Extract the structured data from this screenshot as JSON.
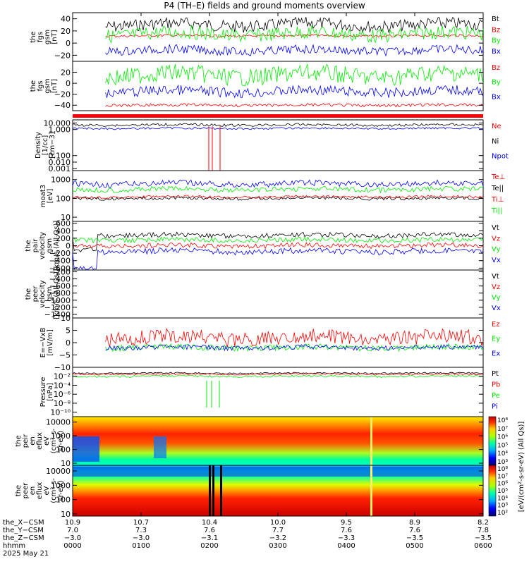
{
  "title": "P4 (TH–E) fields and ground moments overview",
  "colors": {
    "black": "#000000",
    "red": "#ff0000",
    "green": "#00ee00",
    "blue": "#0000ff"
  },
  "panels": [
    {
      "ylabel": [
        "the",
        "fgs",
        "gsm",
        "[nT]"
      ],
      "type": "linear",
      "ylim": [
        -30,
        50
      ],
      "ticks": [
        {
          "v": 40,
          "t": "40"
        },
        {
          "v": 20,
          "t": "20"
        },
        {
          "v": 0,
          "t": "0"
        },
        {
          "v": -20,
          "t": "−20"
        }
      ],
      "legend": [
        {
          "t": "Bt",
          "c": "black"
        },
        {
          "t": "Bz",
          "c": "red"
        },
        {
          "t": "By",
          "c": "green"
        },
        {
          "t": "Bx",
          "c": "blue"
        }
      ]
    },
    {
      "ylabel": [
        "the",
        "fgs",
        "gsm",
        "[nT]"
      ],
      "type": "linear",
      "ylim": [
        -50,
        40
      ],
      "ticks": [
        {
          "v": 20,
          "t": "20"
        },
        {
          "v": 0,
          "t": "0"
        },
        {
          "v": -20,
          "t": "−20"
        },
        {
          "v": -40,
          "t": "−40"
        }
      ],
      "legend": [
        {
          "t": "Bz",
          "c": "red"
        },
        {
          "t": "By",
          "c": "green"
        },
        {
          "t": "Bx",
          "c": "blue"
        }
      ]
    },
    {
      "ylabel": [
        "Density",
        "[1/cc]",
        "[cm−3]"
      ],
      "type": "log",
      "ylim": [
        0.0005,
        30000
      ],
      "ticks": [
        {
          "v": 10000,
          "t": "10.000"
        },
        {
          "v": 1000,
          "t": "1.000"
        },
        {
          "v": 0.1,
          "t": "0.100"
        },
        {
          "v": 0.01,
          "t": "0.010"
        },
        {
          "v": 0.001,
          "t": "0.001"
        }
      ],
      "legend": [
        {
          "t": "Ne",
          "c": "red"
        },
        {
          "t": "Ni",
          "c": "black"
        },
        {
          "t": "Npot",
          "c": "blue"
        }
      ]
    },
    {
      "ylabel": [
        "moat3",
        "[eV]"
      ],
      "type": "log",
      "ylim": [
        6,
        3000
      ],
      "ticks": [
        {
          "v": 1000,
          "t": "1000"
        },
        {
          "v": 100,
          "t": "100"
        },
        {
          "v": 10,
          "t": "10"
        }
      ],
      "legend": [
        {
          "t": "Te⊥",
          "c": "red"
        },
        {
          "t": "Te||",
          "c": "black"
        },
        {
          "t": "Ti⊥",
          "c": "red"
        },
        {
          "t": "Ti||",
          "c": "green"
        }
      ]
    },
    {
      "ylabel": [
        "the",
        "pair",
        "velocity",
        "gsm",
        "[km/s (All Qs)]"
      ],
      "type": "linear",
      "ylim": [
        -650,
        650
      ],
      "ticks": [
        {
          "v": 600,
          "t": "600"
        },
        {
          "v": 400,
          "t": "400"
        },
        {
          "v": 200,
          "t": "200"
        },
        {
          "v": 0,
          "t": "0"
        },
        {
          "v": -200,
          "t": "−200"
        },
        {
          "v": -400,
          "t": "−400"
        },
        {
          "v": -600,
          "t": "−600"
        }
      ],
      "legend": [
        {
          "t": "Vt",
          "c": "black"
        },
        {
          "t": "Vz",
          "c": "red"
        },
        {
          "t": "Vy",
          "c": "green"
        },
        {
          "t": "Vx",
          "c": "blue"
        }
      ]
    },
    {
      "ylabel": [
        "the",
        "peer",
        "velocity",
        "gsm",
        "[km/s (All Qs)]"
      ],
      "type": "linear",
      "ylim": [
        -1500,
        -150
      ],
      "ticks": [
        {
          "v": -200,
          "t": "−200"
        },
        {
          "v": -400,
          "t": "−400"
        },
        {
          "v": -600,
          "t": "−600"
        },
        {
          "v": -800,
          "t": "−800"
        },
        {
          "v": -1000,
          "t": "−1000"
        },
        {
          "v": -1200,
          "t": "−1200"
        },
        {
          "v": -1400,
          "t": "−1400"
        }
      ],
      "legend": [
        {
          "t": "Vt",
          "c": "black"
        },
        {
          "t": "Vz",
          "c": "red"
        },
        {
          "t": "Vy",
          "c": "green"
        },
        {
          "t": "Vx",
          "c": "blue"
        }
      ]
    },
    {
      "ylabel": [
        "E=−VxB",
        "[mV/m]"
      ],
      "type": "linear",
      "ylim": [
        -10,
        10
      ],
      "ticks": [
        {
          "v": 10,
          "t": "10"
        },
        {
          "v": 5,
          "t": "5"
        },
        {
          "v": 0,
          "t": "0"
        },
        {
          "v": -5,
          "t": "−5"
        },
        {
          "v": -10,
          "t": "−10"
        }
      ],
      "legend": [
        {
          "t": "Ez",
          "c": "red"
        },
        {
          "t": "Ey",
          "c": "green"
        },
        {
          "t": "Ex",
          "c": "blue"
        }
      ]
    },
    {
      "ylabel": [
        "Pressure",
        "[nPa]"
      ],
      "type": "log",
      "ylim": [
        1e-11,
        1
      ],
      "ticks": [
        {
          "v": 0.01,
          "t": "10⁻²"
        },
        {
          "v": 0.0001,
          "t": "10⁻⁴"
        },
        {
          "v": 1e-06,
          "t": "10⁻⁶"
        },
        {
          "v": 1e-08,
          "t": "10⁻⁸"
        },
        {
          "v": 1e-10,
          "t": "10⁻¹⁰"
        }
      ],
      "legend": [
        {
          "t": "Pt",
          "c": "black"
        },
        {
          "t": "Pb",
          "c": "red"
        },
        {
          "t": "Pe",
          "c": "green"
        },
        {
          "t": "Pi",
          "c": "blue"
        }
      ]
    },
    {
      "ylabel": [
        "the",
        "peir",
        "en",
        "eflux",
        "eV",
        "(cm²-s-",
        "sr-eV)"
      ],
      "type": "spectrogram",
      "ylim": [
        7,
        25000
      ],
      "ticks": [
        {
          "v": 10000,
          "t": "10000"
        },
        {
          "v": 1000,
          "t": "1000"
        },
        {
          "v": 100,
          "t": "100"
        },
        {
          "v": 10,
          "t": "10"
        }
      ],
      "legend": []
    },
    {
      "ylabel": [
        "the",
        "peer",
        "en",
        "eflux",
        "eV",
        "(cm²-s-",
        "sr-eV)"
      ],
      "type": "spectrogram",
      "ylim": [
        7,
        25000
      ],
      "ticks": [
        {
          "v": 10000,
          "t": "10000"
        },
        {
          "v": 1000,
          "t": "1000"
        },
        {
          "v": 100,
          "t": "100"
        },
        {
          "v": 10,
          "t": "10"
        }
      ],
      "legend": []
    }
  ],
  "colorbar": {
    "label": "[eV/(cm²-s-sr-eV) (All Qs)]",
    "upper_ticks": [
      "10⁸",
      "10⁷",
      "10⁶",
      "10⁵",
      "10⁴",
      "10³"
    ],
    "lower_ticks": [
      "10⁸",
      "10⁷",
      "10⁶",
      "10⁵",
      "10⁴",
      "10³",
      "10²"
    ]
  },
  "xaxis": {
    "row_labels": [
      "the_X−CSM",
      "the_Y−CSM",
      "the_Z−CSM",
      "hhmm",
      "2025 May 21"
    ],
    "columns": [
      {
        "x": "10.9",
        "y": "7.0",
        "z": "−3.0",
        "t": "0000"
      },
      {
        "x": "10.7",
        "y": "7.3",
        "z": "−3.0",
        "t": "0100"
      },
      {
        "x": "10.4",
        "y": "7.6",
        "z": "−3.1",
        "t": "0200"
      },
      {
        "x": "10.0",
        "y": "7.7",
        "z": "−3.2",
        "t": "0300"
      },
      {
        "x": "9.5",
        "y": "7.6",
        "z": "−3.3",
        "t": "0400"
      },
      {
        "x": "8.9",
        "y": "7.6",
        "z": "−3.5",
        "t": "0500"
      },
      {
        "x": "8.2",
        "y": "7.8",
        "z": "−3.5",
        "t": "0600"
      }
    ]
  },
  "chart_data": {
    "type": "line",
    "title": "P4 (TH–E) fields and ground moments overview",
    "xlabel": "hhmm",
    "x_ticks": [
      "0000",
      "0100",
      "0200",
      "0300",
      "0400",
      "0500",
      "0600"
    ],
    "series_approx": [
      {
        "panel": 0,
        "name": "Bt",
        "typical": 30
      },
      {
        "panel": 0,
        "name": "Bz",
        "typical": 12
      },
      {
        "panel": 0,
        "name": "By",
        "typical": 15
      },
      {
        "panel": 0,
        "name": "Bx",
        "typical": -12
      },
      {
        "panel": 1,
        "name": "Bz",
        "typical": -40
      },
      {
        "panel": 1,
        "name": "By",
        "typical": 15
      },
      {
        "panel": 1,
        "name": "Bx",
        "typical": -15
      },
      {
        "panel": 2,
        "name": "Ni",
        "typical": 5000
      },
      {
        "panel": 2,
        "name": "Npot",
        "typical": 1500
      },
      {
        "panel": 3,
        "name": "Te||",
        "typical": 150
      },
      {
        "panel": 3,
        "name": "Ti||",
        "typical": 300
      },
      {
        "panel": 3,
        "name": "Te⊥",
        "typical": 600
      },
      {
        "panel": 4,
        "name": "Vt",
        "typical": 250
      },
      {
        "panel": 4,
        "name": "Vy",
        "typical": 150
      },
      {
        "panel": 4,
        "name": "Vz",
        "typical": 0
      },
      {
        "panel": 4,
        "name": "Vx",
        "typical": -120
      },
      {
        "panel": 6,
        "name": "Ez",
        "typical": 2
      },
      {
        "panel": 6,
        "name": "Ey",
        "typical": -2
      },
      {
        "panel": 6,
        "name": "Ex",
        "typical": -2
      },
      {
        "panel": 7,
        "name": "Pt",
        "typical": 0.05
      },
      {
        "panel": 7,
        "name": "Pb",
        "typical": 0.03
      },
      {
        "panel": 7,
        "name": "Pe",
        "typical": 0.01
      }
    ]
  }
}
